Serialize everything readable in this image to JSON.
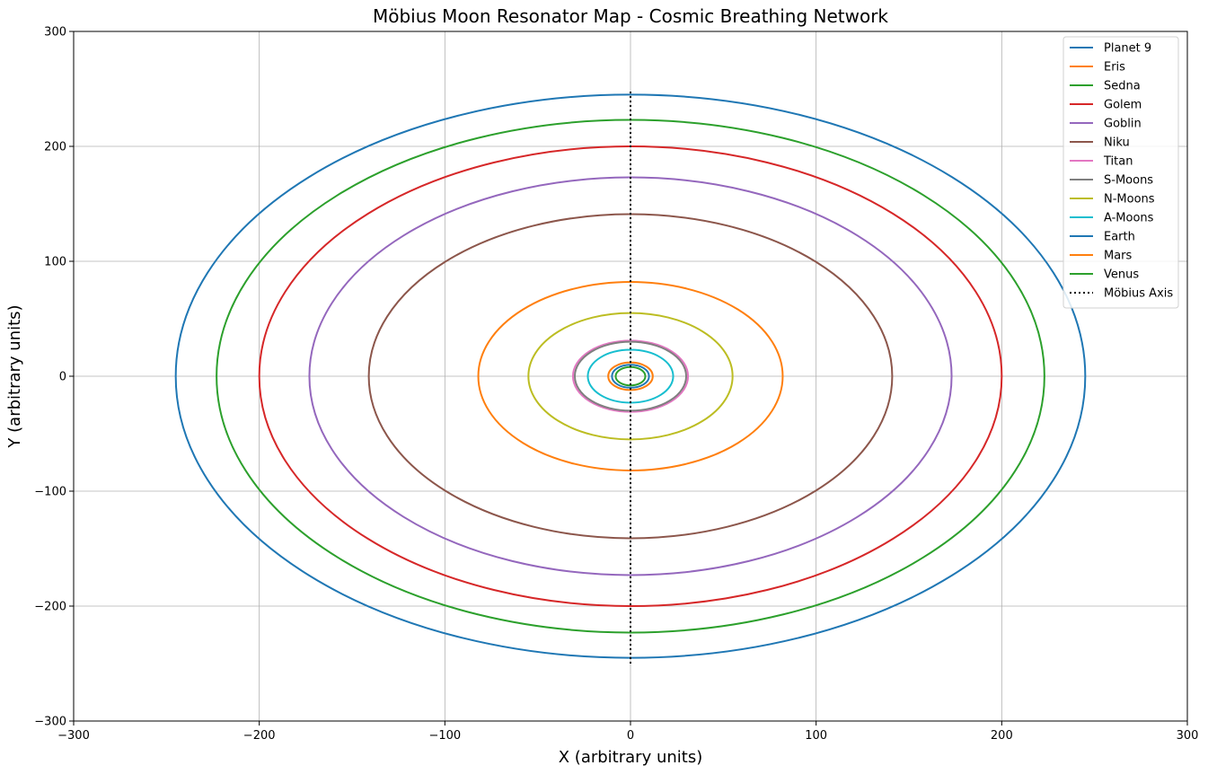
{
  "chart_data": {
    "type": "line",
    "title": "Möbius Moon Resonator Map - Cosmic Breathing Network",
    "xlabel": "X (arbitrary units)",
    "ylabel": "Y (arbitrary units)",
    "xlim": [
      -300,
      300
    ],
    "ylim": [
      -300,
      300
    ],
    "xticks": [
      -300,
      -200,
      -100,
      0,
      100,
      200,
      300
    ],
    "yticks": [
      -300,
      -200,
      -100,
      0,
      100,
      200,
      300
    ],
    "xtick_labels": [
      "−300",
      "−200",
      "−100",
      "0",
      "100",
      "200",
      "300"
    ],
    "ytick_labels": [
      "−300",
      "−200",
      "−100",
      "0",
      "100",
      "200",
      "300"
    ],
    "grid": true,
    "legend_position": "top-right",
    "series": [
      {
        "name": "Planet 9",
        "shape": "circle",
        "radius": 245,
        "color": "#1f77b4"
      },
      {
        "name": "Eris",
        "shape": "circle",
        "radius": 82,
        "color": "#ff7f0e"
      },
      {
        "name": "Sedna",
        "shape": "circle",
        "radius": 223,
        "color": "#2ca02c"
      },
      {
        "name": "Golem",
        "shape": "circle",
        "radius": 200,
        "color": "#d62728"
      },
      {
        "name": "Goblin",
        "shape": "circle",
        "radius": 173,
        "color": "#9467bd"
      },
      {
        "name": "Niku",
        "shape": "circle",
        "radius": 141,
        "color": "#8c564b"
      },
      {
        "name": "Titan",
        "shape": "circle",
        "radius": 31,
        "color": "#e377c2"
      },
      {
        "name": "S-Moons",
        "shape": "circle",
        "radius": 30,
        "color": "#7f7f7f"
      },
      {
        "name": "N-Moons",
        "shape": "circle",
        "radius": 55,
        "color": "#bcbd22"
      },
      {
        "name": "A-Moons",
        "shape": "circle",
        "radius": 23,
        "color": "#17becf"
      },
      {
        "name": "Earth",
        "shape": "circle",
        "radius": 10,
        "color": "#1f77b4"
      },
      {
        "name": "Mars",
        "shape": "circle",
        "radius": 12,
        "color": "#ff7f0e"
      },
      {
        "name": "Venus",
        "shape": "circle",
        "radius": 8,
        "color": "#2ca02c"
      },
      {
        "name": "Möbius Axis",
        "shape": "line",
        "x": [
          0,
          0
        ],
        "y": [
          -250,
          250
        ],
        "color": "#000000",
        "dashed": true
      }
    ]
  }
}
